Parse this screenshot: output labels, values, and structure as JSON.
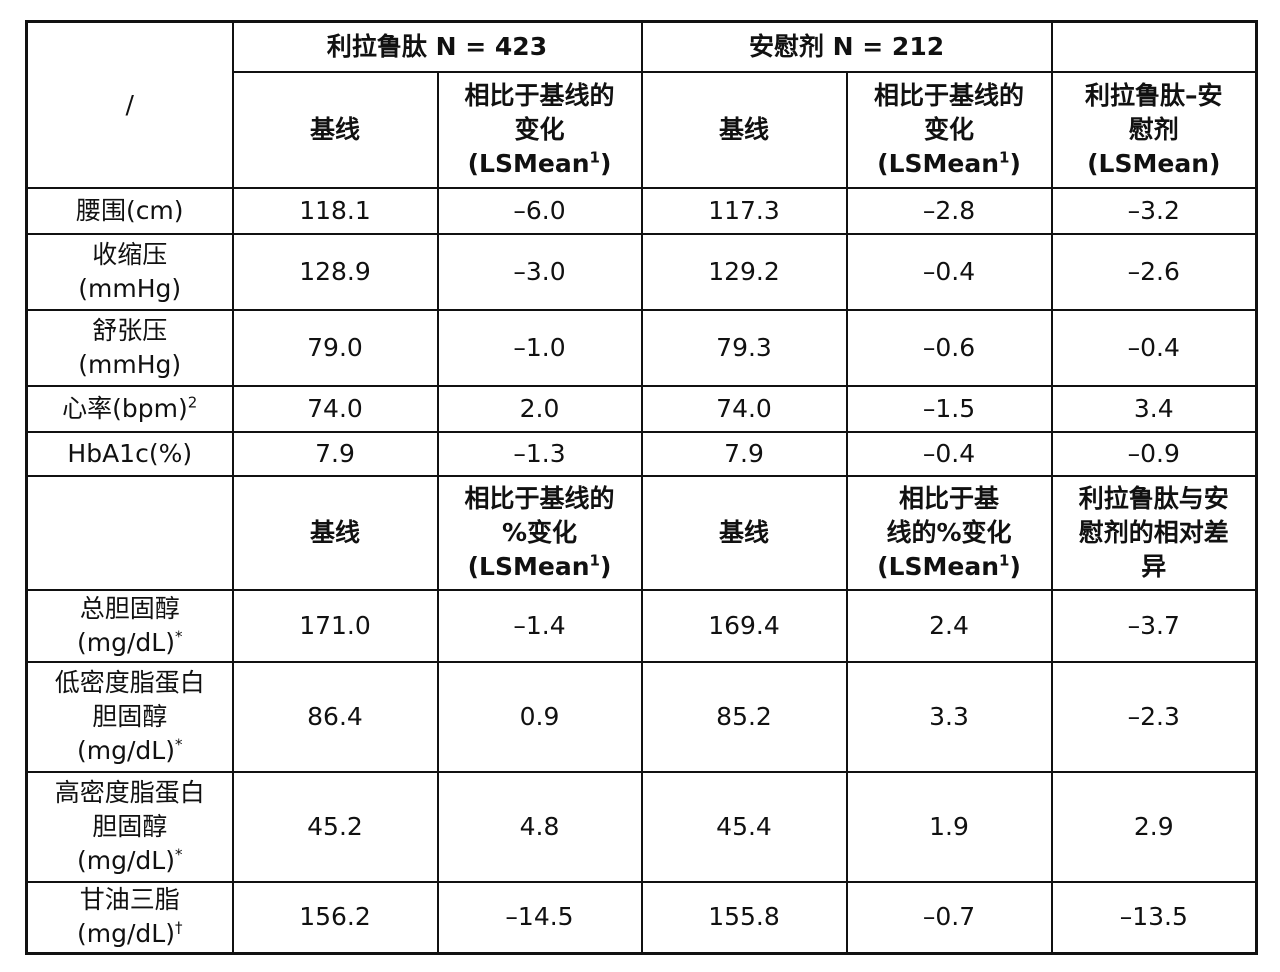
{
  "header": {
    "corner": "/",
    "groups": [
      "利拉鲁肽 N = 423",
      "安慰剂 N = 212"
    ],
    "columns": [
      {
        "lines": [
          "基线"
        ]
      },
      {
        "lines": [
          "相比于基线的",
          "变化"
        ],
        "note": "(LSMean",
        "sup": "1",
        "close": ")"
      },
      {
        "lines": [
          "基线"
        ]
      },
      {
        "lines": [
          "相比于基线的",
          "变化"
        ],
        "note": "(LSMean",
        "sup": "1",
        "close": ")"
      },
      {
        "lines": [
          "利拉鲁肽–安",
          "慰剂"
        ],
        "note": "(LSMean)"
      }
    ]
  },
  "rows": [
    {
      "label": [
        "腰围(cm)"
      ],
      "values": [
        "118.1",
        "–6.0",
        "117.3",
        "–2.8",
        "–3.2"
      ]
    },
    {
      "label": [
        "收缩压",
        "(mmHg)"
      ],
      "values": [
        "128.9",
        "–3.0",
        "129.2",
        "–0.4",
        "–2.6"
      ]
    },
    {
      "label": [
        "舒张压",
        "(mmHg)"
      ],
      "values": [
        "79.0",
        "–1.0",
        "79.3",
        "–0.6",
        "–0.4"
      ]
    },
    {
      "label": [
        "心率(bpm)"
      ],
      "mark": "2",
      "values": [
        "74.0",
        "2.0",
        "74.0",
        "–1.5",
        "3.4"
      ]
    },
    {
      "label": [
        "HbA1c(%)"
      ],
      "values": [
        "7.9",
        "–1.3",
        "7.9",
        "–0.4",
        "–0.9"
      ]
    }
  ],
  "subheader": {
    "columns": [
      {
        "lines": [
          "基线"
        ]
      },
      {
        "lines": [
          "相比于基线的",
          "%变化"
        ],
        "note": "(LSMean",
        "sup": "1",
        "close": ")"
      },
      {
        "lines": [
          "基线"
        ]
      },
      {
        "lines": [
          "相比于基",
          "线的%变化"
        ],
        "note": "(LSMean",
        "sup": "1",
        "close": ")"
      },
      {
        "lines": [
          "利拉鲁肽与安",
          "慰剂的相对差",
          "异"
        ]
      }
    ]
  },
  "rows2": [
    {
      "label": [
        "总胆固醇",
        "(mg/dL)"
      ],
      "mark": "*",
      "values": [
        "171.0",
        "–1.4",
        "169.4",
        "2.4",
        "–3.7"
      ]
    },
    {
      "label": [
        "低密度脂蛋白",
        "胆固醇",
        "(mg/dL)"
      ],
      "mark": "*",
      "values": [
        "86.4",
        "0.9",
        "85.2",
        "3.3",
        "–2.3"
      ]
    },
    {
      "label": [
        "高密度脂蛋白",
        "胆固醇",
        "(mg/dL)"
      ],
      "mark": "*",
      "values": [
        "45.2",
        "4.8",
        "45.4",
        "1.9",
        "2.9"
      ]
    },
    {
      "label": [
        "甘油三脂",
        "(mg/dL)"
      ],
      "mark": "†",
      "values": [
        "156.2",
        "–14.5",
        "155.8",
        "–0.7",
        "–13.5"
      ]
    }
  ]
}
